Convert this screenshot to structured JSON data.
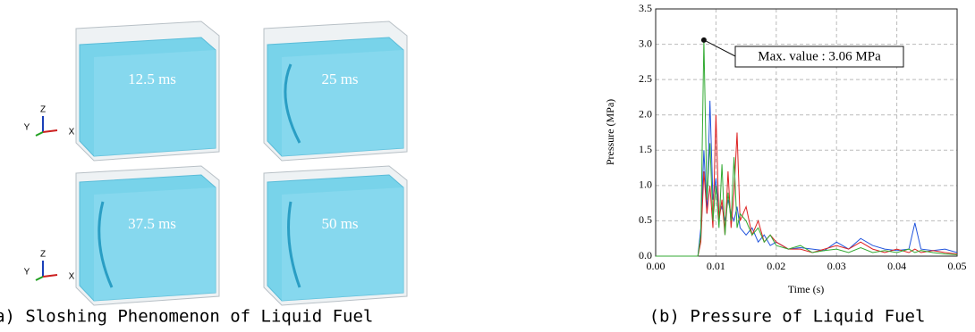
{
  "panel_a": {
    "labels": [
      "12.5 ms",
      "25 ms",
      "37.5 ms",
      "50 ms"
    ],
    "triad": [
      "Z",
      "Y",
      "X"
    ],
    "caption": "(a) Sloshing Phenomenon of Liquid Fuel"
  },
  "panel_b": {
    "caption": "(b) Pressure of Liquid Fuel"
  },
  "chart_data": {
    "type": "line",
    "xlabel": "Time (s)",
    "ylabel": "Pressure (MPa)",
    "xlim": [
      0,
      0.05
    ],
    "xticks": [
      {
        "value": 0,
        "label": "0.00"
      },
      0.01,
      0.02,
      0.03,
      0.04,
      0.05
    ],
    "ylim": [
      0,
      3.5
    ],
    "yticks": [
      {
        "value": 0,
        "label": "0.0"
      },
      0.5,
      {
        "value": 1,
        "label": "1.0"
      },
      1.5,
      {
        "value": 2,
        "label": "2.0"
      },
      2.5,
      {
        "value": 3,
        "label": "3.0"
      },
      3.5
    ],
    "grid": true,
    "annotation": {
      "text": "Max. value : 3.06 MPa",
      "x": 0.008,
      "y": 3.06
    },
    "x": [
      0,
      0.007,
      0.0075,
      0.008,
      0.0085,
      0.009,
      0.0095,
      0.01,
      0.0105,
      0.011,
      0.0115,
      0.012,
      0.0125,
      0.013,
      0.0135,
      0.014,
      0.015,
      0.016,
      0.017,
      0.018,
      0.019,
      0.02,
      0.022,
      0.024,
      0.026,
      0.028,
      0.03,
      0.032,
      0.034,
      0.036,
      0.038,
      0.04,
      0.042,
      0.043,
      0.044,
      0.046,
      0.048,
      0.05
    ],
    "series": [
      {
        "color": "#2255dd",
        "values": [
          0,
          0,
          0.4,
          1.5,
          0.6,
          2.2,
          0.8,
          1.1,
          0.6,
          0.7,
          0.5,
          0.8,
          0.6,
          0.5,
          0.7,
          0.4,
          0.3,
          0.4,
          0.2,
          0.3,
          0.15,
          0.2,
          0.1,
          0.12,
          0.1,
          0.08,
          0.2,
          0.1,
          0.25,
          0.15,
          0.1,
          0.08,
          0.1,
          0.47,
          0.1,
          0.08,
          0.1,
          0.05
        ]
      },
      {
        "color": "#dd2222",
        "values": [
          0,
          0,
          0.2,
          1.2,
          0.6,
          1.0,
          0.4,
          2.0,
          0.5,
          0.8,
          0.3,
          1.2,
          0.4,
          0.9,
          1.75,
          0.5,
          0.7,
          0.3,
          0.5,
          0.2,
          0.3,
          0.2,
          0.1,
          0.1,
          0.05,
          0.1,
          0.15,
          0.1,
          0.2,
          0.1,
          0.05,
          0.1,
          0.05,
          0.1,
          0.05,
          0.08,
          0.05,
          0.03
        ]
      },
      {
        "color": "#33aa33",
        "values": [
          0,
          0,
          0.3,
          3.06,
          0.8,
          1.6,
          0.5,
          1.0,
          0.4,
          1.3,
          0.3,
          0.9,
          0.5,
          1.4,
          0.4,
          0.6,
          0.5,
          0.3,
          0.4,
          0.2,
          0.3,
          0.15,
          0.1,
          0.15,
          0.05,
          0.08,
          0.1,
          0.05,
          0.12,
          0.05,
          0.08,
          0.05,
          0.1,
          0.05,
          0.08,
          0.05,
          0.03,
          0.02
        ]
      }
    ]
  }
}
